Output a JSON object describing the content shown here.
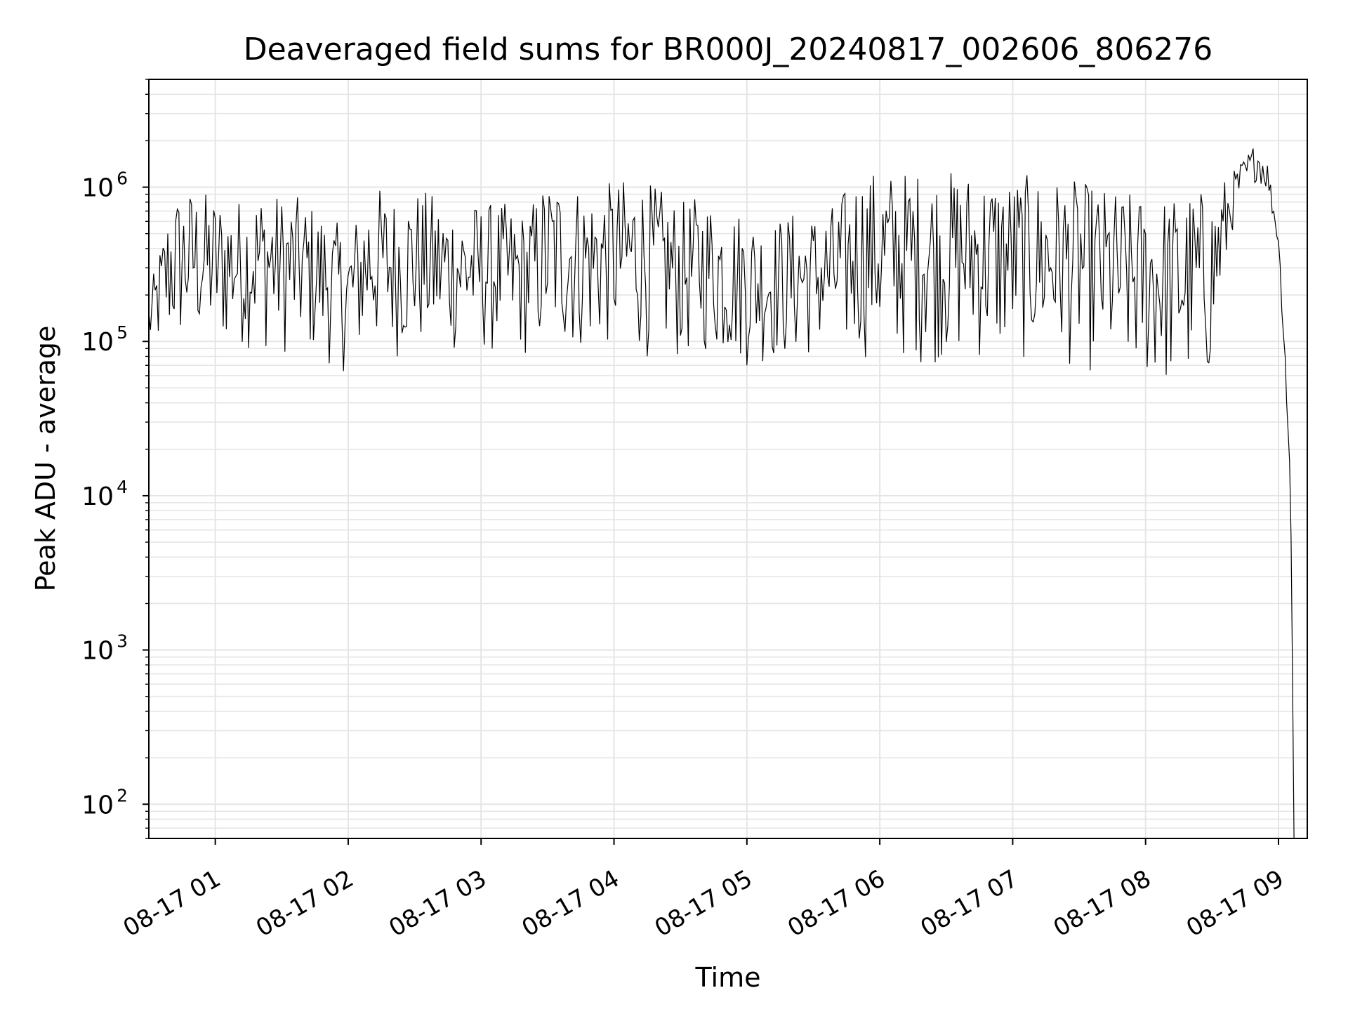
{
  "chart_data": {
    "type": "line",
    "title": "Deaveraged field sums for BR000J_20240817_002606_806276",
    "xlabel": "Time",
    "ylabel": "Peak ADU - average",
    "yscale": "log",
    "grid": true,
    "line_color": "#000000",
    "grid_color": "#e5e5e5",
    "xlim": [
      "2024-08-17 00:30",
      "2024-08-17 09:13"
    ],
    "ylim": [
      60,
      5000000
    ],
    "x_ticks": [
      {
        "t": "2024-08-17 01:00",
        "label": "08-17 01"
      },
      {
        "t": "2024-08-17 02:00",
        "label": "08-17 02"
      },
      {
        "t": "2024-08-17 03:00",
        "label": "08-17 03"
      },
      {
        "t": "2024-08-17 04:00",
        "label": "08-17 04"
      },
      {
        "t": "2024-08-17 05:00",
        "label": "08-17 05"
      },
      {
        "t": "2024-08-17 06:00",
        "label": "08-17 06"
      },
      {
        "t": "2024-08-17 07:00",
        "label": "08-17 07"
      },
      {
        "t": "2024-08-17 08:00",
        "label": "08-17 08"
      },
      {
        "t": "2024-08-17 09:00",
        "label": "08-17 09"
      }
    ],
    "y_ticks": [
      {
        "value": 100,
        "base": "10",
        "exp": "2"
      },
      {
        "value": 1000,
        "base": "10",
        "exp": "3"
      },
      {
        "value": 10000,
        "base": "10",
        "exp": "4"
      },
      {
        "value": 100000,
        "base": "10",
        "exp": "5"
      },
      {
        "value": 1000000,
        "base": "10",
        "exp": "6"
      }
    ],
    "series": [
      {
        "values_note_free": true,
        "x": [
          "2024-08-17 00:30",
          "2024-08-17 00:40",
          "2024-08-17 00:50",
          "2024-08-17 01:00",
          "2024-08-17 01:10",
          "2024-08-17 01:20",
          "2024-08-17 01:30",
          "2024-08-17 01:40",
          "2024-08-17 01:50",
          "2024-08-17 02:00",
          "2024-08-17 02:10",
          "2024-08-17 02:20",
          "2024-08-17 02:30",
          "2024-08-17 02:40",
          "2024-08-17 02:50",
          "2024-08-17 03:00",
          "2024-08-17 03:10",
          "2024-08-17 03:20",
          "2024-08-17 03:30",
          "2024-08-17 03:40",
          "2024-08-17 03:50",
          "2024-08-17 04:00",
          "2024-08-17 04:10",
          "2024-08-17 04:20",
          "2024-08-17 04:30",
          "2024-08-17 04:40",
          "2024-08-17 04:50",
          "2024-08-17 05:00",
          "2024-08-17 05:10",
          "2024-08-17 05:20",
          "2024-08-17 05:30",
          "2024-08-17 05:40",
          "2024-08-17 05:50",
          "2024-08-17 06:00",
          "2024-08-17 06:10",
          "2024-08-17 06:20",
          "2024-08-17 06:30",
          "2024-08-17 06:40",
          "2024-08-17 06:50",
          "2024-08-17 07:00",
          "2024-08-17 07:10",
          "2024-08-17 07:20",
          "2024-08-17 07:30",
          "2024-08-17 07:40",
          "2024-08-17 07:50",
          "2024-08-17 08:00",
          "2024-08-17 08:10",
          "2024-08-17 08:20",
          "2024-08-17 08:30",
          "2024-08-17 08:40",
          "2024-08-17 08:50",
          "2024-08-17 08:55",
          "2024-08-17 09:00",
          "2024-08-17 09:03",
          "2024-08-17 09:05",
          "2024-08-17 09:07"
        ],
        "upper": [
          200000,
          900000,
          1000000,
          900000,
          850000,
          1000000,
          900000,
          850000,
          700000,
          500000,
          1100000,
          900000,
          1000000,
          900000,
          800000,
          800000,
          800000,
          700000,
          1200000,
          1100000,
          1000000,
          1100000,
          1200000,
          1000000,
          800000,
          900000,
          800000,
          700000,
          600000,
          700000,
          700000,
          800000,
          1300000,
          1300000,
          1300000,
          1300000,
          1300000,
          1300000,
          1250000,
          1200000,
          1200000,
          1150000,
          1100000,
          1000000,
          950000,
          900000,
          900000,
          950000,
          1000000,
          1300000,
          2000000,
          1500000,
          500000,
          100000,
          20000,
          3000
        ],
        "lower": [
          80000,
          80000,
          90000,
          80000,
          90000,
          85000,
          80000,
          75000,
          70000,
          60000,
          80000,
          75000,
          80000,
          75000,
          80000,
          80000,
          75000,
          75000,
          80000,
          80000,
          80000,
          85000,
          80000,
          75000,
          70000,
          80000,
          70000,
          65000,
          70000,
          70000,
          75000,
          70000,
          75000,
          75000,
          70000,
          70000,
          70000,
          70000,
          70000,
          70000,
          70000,
          70000,
          65000,
          55000,
          50000,
          50000,
          45000,
          45000,
          50000,
          600000,
          1100000,
          900000,
          400000,
          60000,
          10000,
          60
        ]
      }
    ]
  }
}
